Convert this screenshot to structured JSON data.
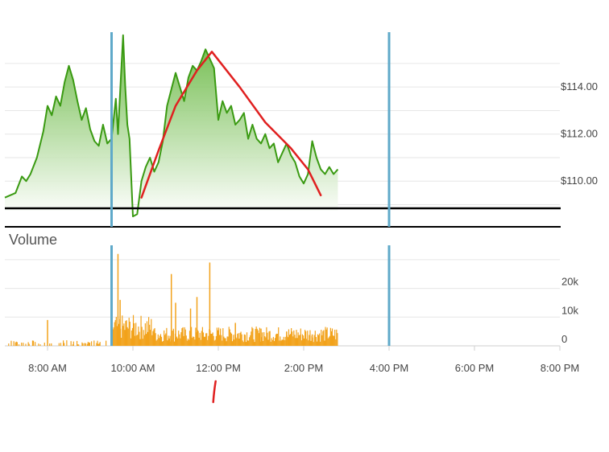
{
  "chart_data": {
    "type": "line",
    "x_axis": {
      "type": "time",
      "range": [
        "7:00 AM",
        "8:00 PM"
      ],
      "ticks": [
        "8:00 AM",
        "10:00 AM",
        "12:00 PM",
        "2:00 PM",
        "4:00 PM",
        "6:00 PM",
        "8:00 PM"
      ],
      "session_markers": [
        "9:30 AM",
        "4:00 PM"
      ]
    },
    "price_axis": {
      "ticks": [
        110,
        112,
        114
      ],
      "tick_labels": [
        "$110.00",
        "$112.00",
        "$114.00"
      ],
      "range": [
        108.3,
        116.5
      ],
      "position": "right"
    },
    "price_series": {
      "color": "#3a9a12",
      "fill": "green-gradient",
      "points": [
        [
          7.0,
          109.3
        ],
        [
          7.25,
          109.5
        ],
        [
          7.4,
          110.2
        ],
        [
          7.5,
          110.0
        ],
        [
          7.6,
          110.3
        ],
        [
          7.75,
          111.0
        ],
        [
          7.9,
          112.1
        ],
        [
          8.0,
          113.2
        ],
        [
          8.1,
          112.8
        ],
        [
          8.2,
          113.6
        ],
        [
          8.3,
          113.2
        ],
        [
          8.4,
          114.2
        ],
        [
          8.5,
          114.9
        ],
        [
          8.6,
          114.3
        ],
        [
          8.7,
          113.4
        ],
        [
          8.8,
          112.6
        ],
        [
          8.9,
          113.1
        ],
        [
          9.0,
          112.2
        ],
        [
          9.1,
          111.7
        ],
        [
          9.2,
          111.5
        ],
        [
          9.3,
          112.4
        ],
        [
          9.4,
          111.6
        ],
        [
          9.5,
          111.8
        ],
        [
          9.6,
          113.5
        ],
        [
          9.65,
          112.0
        ],
        [
          9.72,
          114.5
        ],
        [
          9.77,
          116.2
        ],
        [
          9.82,
          114.0
        ],
        [
          9.87,
          112.4
        ],
        [
          9.92,
          111.8
        ],
        [
          10.0,
          108.5
        ],
        [
          10.1,
          108.6
        ],
        [
          10.2,
          110.0
        ],
        [
          10.3,
          110.6
        ],
        [
          10.4,
          111.0
        ],
        [
          10.5,
          110.4
        ],
        [
          10.6,
          110.8
        ],
        [
          10.7,
          111.7
        ],
        [
          10.8,
          113.2
        ],
        [
          10.9,
          113.9
        ],
        [
          11.0,
          114.6
        ],
        [
          11.1,
          114.0
        ],
        [
          11.2,
          113.4
        ],
        [
          11.3,
          114.4
        ],
        [
          11.4,
          114.9
        ],
        [
          11.5,
          114.7
        ],
        [
          11.6,
          115.1
        ],
        [
          11.7,
          115.6
        ],
        [
          11.8,
          115.2
        ],
        [
          11.9,
          114.8
        ],
        [
          12.0,
          112.6
        ],
        [
          12.1,
          113.4
        ],
        [
          12.2,
          112.9
        ],
        [
          12.3,
          113.2
        ],
        [
          12.4,
          112.4
        ],
        [
          12.5,
          112.6
        ],
        [
          12.6,
          112.9
        ],
        [
          12.7,
          111.8
        ],
        [
          12.8,
          112.4
        ],
        [
          12.9,
          111.8
        ],
        [
          13.0,
          111.6
        ],
        [
          13.1,
          112.0
        ],
        [
          13.2,
          111.4
        ],
        [
          13.3,
          111.6
        ],
        [
          13.4,
          110.8
        ],
        [
          13.5,
          111.2
        ],
        [
          13.6,
          111.6
        ],
        [
          13.7,
          111.1
        ],
        [
          13.8,
          110.8
        ],
        [
          13.9,
          110.2
        ],
        [
          14.0,
          109.9
        ],
        [
          14.1,
          110.3
        ],
        [
          14.2,
          111.7
        ],
        [
          14.3,
          111.0
        ],
        [
          14.4,
          110.5
        ],
        [
          14.5,
          110.3
        ],
        [
          14.6,
          110.6
        ],
        [
          14.7,
          110.3
        ],
        [
          14.8,
          110.5
        ]
      ]
    },
    "volume_axis": {
      "tick_labels": [
        "0",
        "10k",
        "20k"
      ],
      "ticks": [
        0,
        10000,
        20000
      ],
      "range": [
        0,
        35000
      ],
      "position": "right"
    },
    "volume_series": {
      "color": "#f2a21b",
      "premarket_level": 1500,
      "session_level": 4500,
      "afterhours_level": 1200,
      "spikes": [
        [
          8.0,
          9000
        ],
        [
          9.65,
          32000
        ],
        [
          9.7,
          16000
        ],
        [
          10.9,
          25000
        ],
        [
          11.0,
          15000
        ],
        [
          11.35,
          13000
        ],
        [
          11.5,
          17000
        ],
        [
          11.8,
          29000
        ],
        [
          12.4,
          8000
        ],
        [
          13.0,
          6000
        ],
        [
          13.6,
          5000
        ],
        [
          14.2,
          4000
        ]
      ]
    },
    "volume_title": "Volume",
    "annotations": [
      {
        "kind": "freehand-line",
        "color": "#e02020",
        "points": [
          [
            10.2,
            109.3
          ],
          [
            10.6,
            111.3
          ],
          [
            11.0,
            113.2
          ],
          [
            11.5,
            114.7
          ],
          [
            11.85,
            115.5
          ],
          [
            12.5,
            114.0
          ],
          [
            13.1,
            112.5
          ],
          [
            13.7,
            111.4
          ],
          [
            14.1,
            110.5
          ],
          [
            14.4,
            109.4
          ]
        ]
      },
      {
        "kind": "tick-mark",
        "color": "#e02020",
        "x": 11.9
      }
    ],
    "grid": true,
    "legend": "none"
  }
}
